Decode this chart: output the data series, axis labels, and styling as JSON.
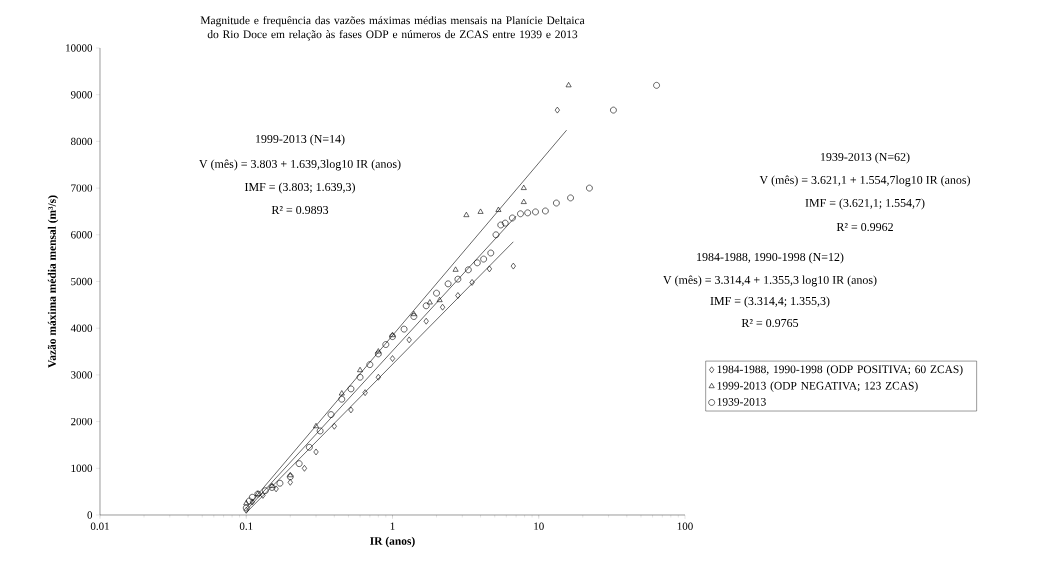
{
  "chart_data": {
    "type": "scatter",
    "title": "Magnitude e frequência das vazões máximas médias mensais na Planície Deltaica do Rio Doce em relação às fases ODP e números de ZCAS entre 1939 e 2013",
    "xlabel": "IR (anos)",
    "ylabel": "Vazão máxima média mensal (m³/s)",
    "log": "x",
    "xlim": [
      0.01,
      100
    ],
    "xticks": [
      0.01,
      0.1,
      1,
      10,
      100
    ],
    "ylim": [
      0,
      10000
    ],
    "yticks": [
      0,
      1000,
      2000,
      3000,
      4000,
      5000,
      6000,
      7000,
      8000,
      9000,
      10000
    ],
    "grid": false,
    "legend": "right",
    "annotations": [
      "1999-2013 (N=14)",
      "V (mês) = 3.803 + 1.639,3log10 IR (anos)",
      "IMF = (3.803; 1.639,3)",
      "R² = 0.9893",
      "1939-2013 (N=62)",
      "V (mês) = 3.621,1 + 1.554,7log10 IR (anos)",
      "IMF = (3.621,1; 1.554,7)",
      "R² = 0.9962",
      "1984-1988, 1990-1998 (N=12)",
      "V (mês) = 3.314,4 + 1.355,3 log10 IR (anos)",
      "IMF = (3.314,4; 1.355,3)",
      "R² = 0.9765"
    ],
    "series": [
      {
        "name": "1984-1988, 1990-1998 (ODP POSITIVA; 60 ZCAS)",
        "type": "scatter",
        "marker": "diamond",
        "color": "#000000",
        "x": [
          0.1,
          0.11,
          0.13,
          0.16,
          0.2,
          0.25,
          0.3,
          0.4,
          0.52,
          0.65,
          0.8,
          1.0,
          1.3,
          1.7,
          2.2,
          2.8,
          3.5,
          4.6,
          6.7,
          13.4
        ],
        "values": [
          100,
          280,
          420,
          560,
          700,
          1000,
          1350,
          1900,
          2250,
          2620,
          2950,
          3350,
          3750,
          4150,
          4450,
          4700,
          4980,
          5270,
          5330,
          8670
        ]
      },
      {
        "name": "1999-2013 (ODP NEGATIVA; 123 ZCAS)",
        "type": "scatter",
        "marker": "triangle",
        "color": "#000000",
        "x": [
          0.1,
          0.12,
          0.15,
          0.2,
          0.3,
          0.45,
          0.6,
          0.8,
          1.0,
          1.4,
          1.8,
          2.1,
          2.7,
          3.2,
          4.0,
          5.3,
          7.9,
          7.9,
          16
        ],
        "values": [
          250,
          450,
          620,
          850,
          1900,
          2600,
          3100,
          3500,
          3850,
          4300,
          4550,
          4600,
          5250,
          6420,
          6490,
          6530,
          6700,
          7000,
          9200
        ]
      },
      {
        "name": "1939-2013",
        "type": "scatter",
        "marker": "circle",
        "color": "#000000",
        "x": [
          0.1,
          0.105,
          0.11,
          0.12,
          0.135,
          0.15,
          0.17,
          0.2,
          0.23,
          0.27,
          0.32,
          0.38,
          0.45,
          0.52,
          0.6,
          0.7,
          0.8,
          0.9,
          1.0,
          1.2,
          1.4,
          1.7,
          2.0,
          2.4,
          2.8,
          3.3,
          3.8,
          4.2,
          4.7,
          5.1,
          5.5,
          5.9,
          6.6,
          7.5,
          8.4,
          9.5,
          11.1,
          13.2,
          16.5,
          22.2,
          32.4,
          63.9
        ],
        "values": [
          150,
          300,
          380,
          450,
          520,
          590,
          680,
          820,
          1100,
          1450,
          1800,
          2150,
          2480,
          2700,
          2950,
          3220,
          3450,
          3650,
          3820,
          3980,
          4250,
          4480,
          4750,
          4950,
          5050,
          5250,
          5400,
          5480,
          5610,
          6000,
          6210,
          6250,
          6360,
          6450,
          6470,
          6490,
          6510,
          6680,
          6790,
          7000,
          8670,
          9200
        ]
      },
      {
        "type": "line",
        "marker": "none",
        "line_style": "solid",
        "color": "#000000",
        "x": [
          0.1,
          15.5
        ],
        "values": [
          150,
          8240
        ]
      },
      {
        "type": "line",
        "marker": "none",
        "line_style": "solid",
        "color": "#000000",
        "x": [
          0.1,
          7.0
        ],
        "values": [
          100,
          6400
        ]
      },
      {
        "type": "line",
        "marker": "none",
        "line_style": "solid",
        "color": "#000000",
        "x": [
          0.1,
          6.7
        ],
        "values": [
          50,
          5850
        ]
      }
    ]
  }
}
